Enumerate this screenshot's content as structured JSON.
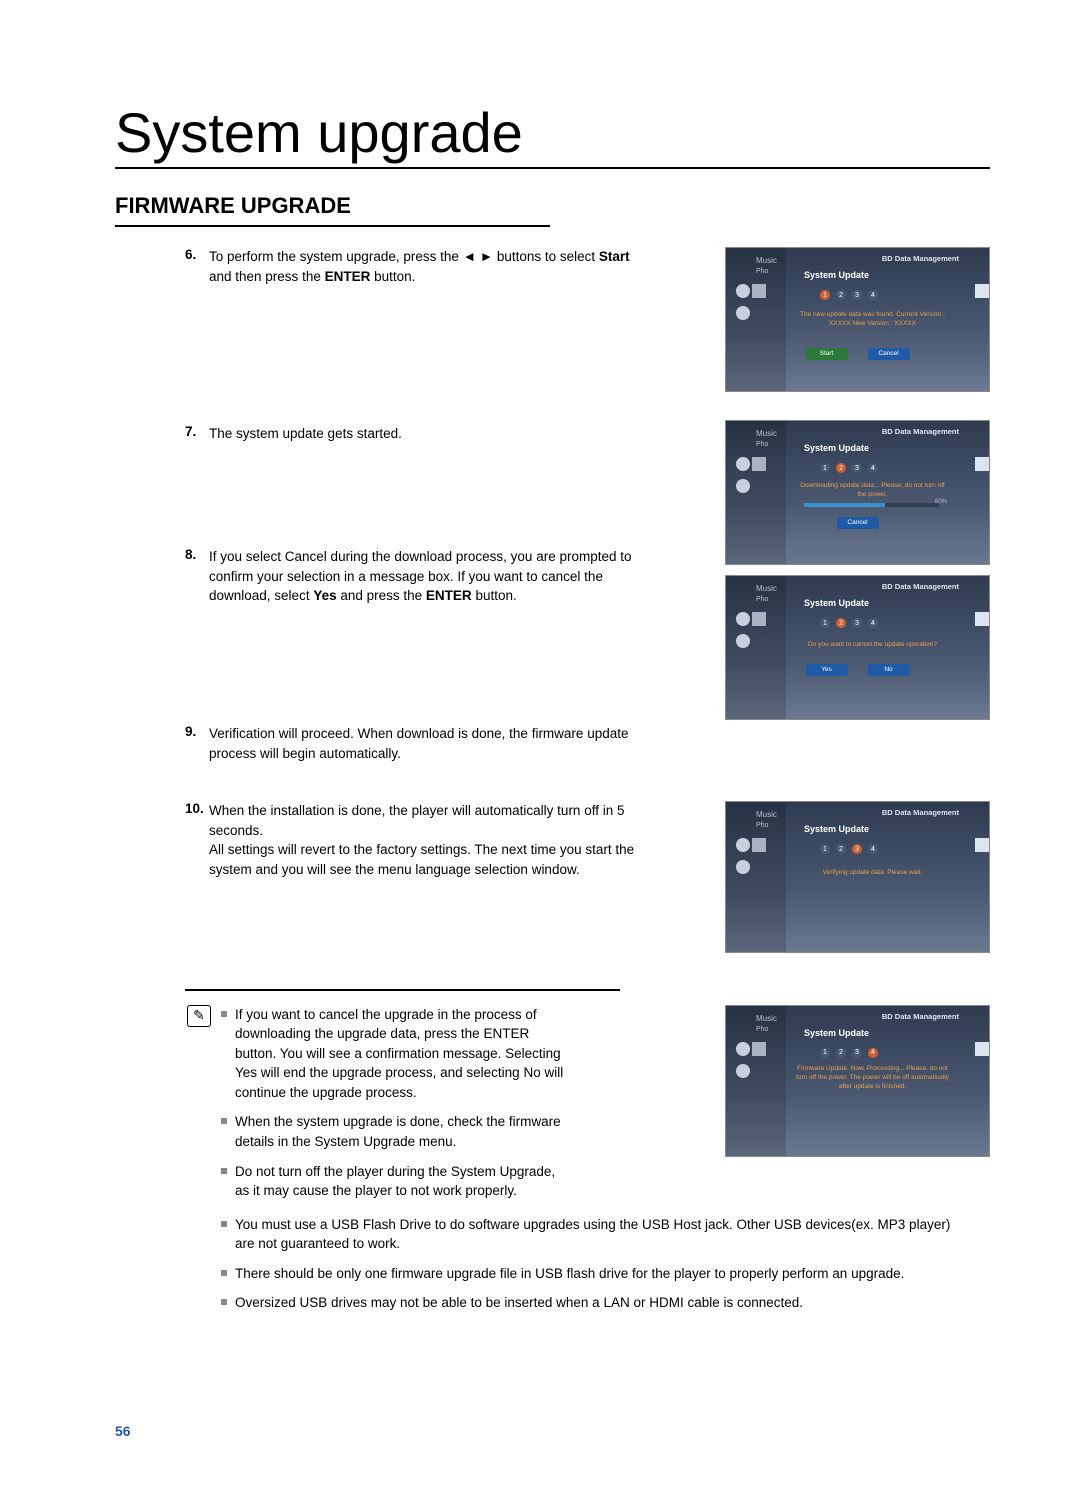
{
  "page_title": "System upgrade",
  "section_title": "FIRMWARE UPGRADE",
  "page_number": "56",
  "steps": [
    {
      "num": "6.",
      "text": "To perform the system upgrade, press the ◄ ► buttons to select <b>Start</b> and then press the <b>ENTER</b> button."
    },
    {
      "num": "7.",
      "text": "The system update gets started."
    },
    {
      "num": "8.",
      "text": "If you select Cancel during the download process, you are prompted to confirm your selection in a message box. If you want to cancel the download, select <b>Yes</b> and press the <b>ENTER</b> button."
    },
    {
      "num": "9.",
      "text": "Verification will proceed. When download is done, the firmware update process will begin automatically."
    },
    {
      "num": "10.",
      "text": "When the installation is done, the player will automatically turn off in 5 seconds.\nAll settings will revert to the factory settings. The next time you start the system and you will see the menu language selection window."
    }
  ],
  "bullets_short": [
    "If you want to cancel the upgrade in the process of downloading the upgrade data, press the <b>ENTER</b> button. You will see a confirmation message. Selecting <b>Yes</b> will end the upgrade process, and selecting <b>No</b> will continue the upgrade process.",
    "When the system upgrade is done, check the firmware details in the System Upgrade menu.",
    "Do not turn off the player during the System Upgrade, as it may cause the player to not work properly."
  ],
  "bullets_full": [
    "You must use a USB Flash Drive to do software upgrades using the USB Host jack. Other USB devices(ex. MP3 player) are not guaranteed to work.",
    "There should be only one firmware upgrade file in USB flash drive for the player to properly perform an upgrade.",
    "Oversized USB drives may not be able to be inserted when a LAN or HDMI cable is connected."
  ],
  "screenshots": {
    "bd_title": "BD Data Management",
    "panel_title": "System Update",
    "music": "Music",
    "pho": "Pho",
    "s1": {
      "dots_active": 0,
      "msg": "The new update data was found.\nCurrent Version : XXXXX\nNew Version : XXXXX",
      "btn1": "Start",
      "btn2": "Cancel"
    },
    "s2": {
      "dots_active": 1,
      "msg": "Downloading update data...\nPlease, do not turn off the power.",
      "percent": "60%",
      "btn": "Cancel"
    },
    "s3": {
      "dots_active": 1,
      "msg": "Do you want to cancel the update operation?",
      "btn1": "Yes",
      "btn2": "No"
    },
    "s4": {
      "dots_active": 2,
      "msg": "Verifying update data.\nPlease wait."
    },
    "s5": {
      "dots_active": 3,
      "msg": "Firmware Update.\nNow, Processing...\nPlease, do not turn off the power.\nThe power will be off automatically\nafter update is finished."
    }
  }
}
